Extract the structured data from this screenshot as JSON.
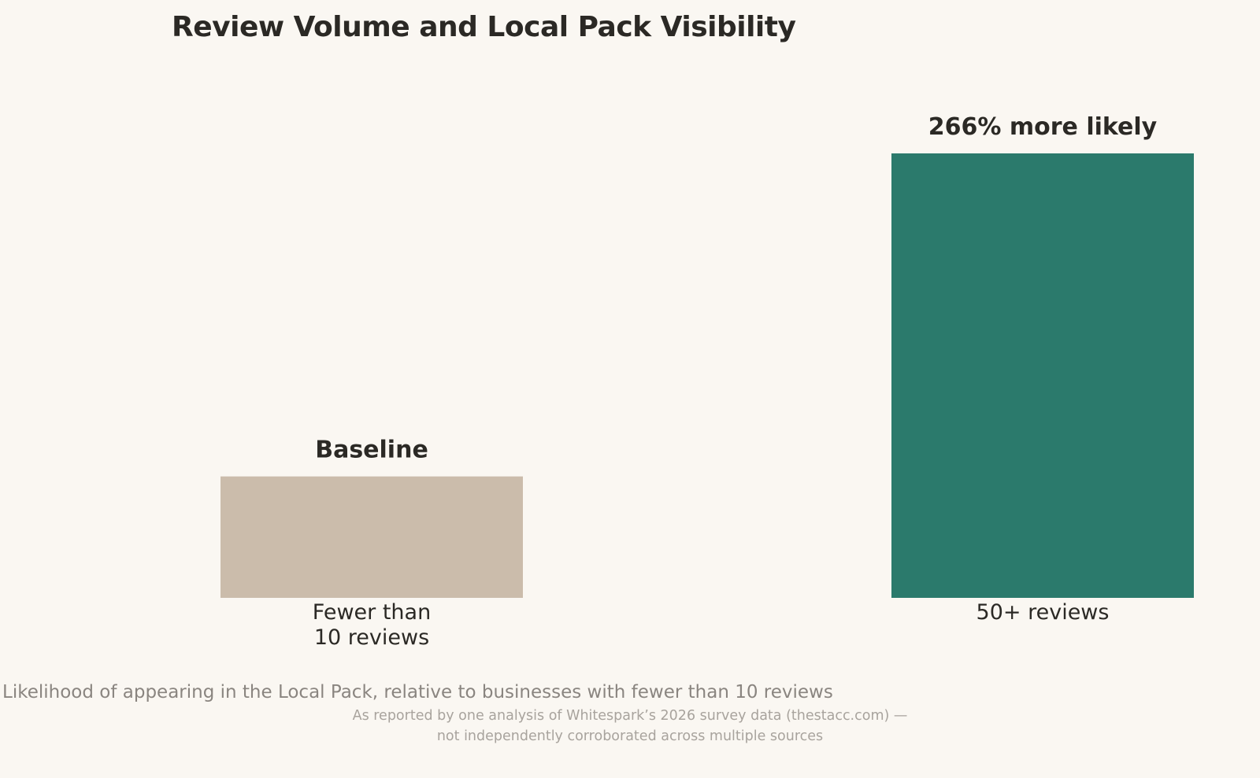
{
  "chart_data": {
    "type": "bar",
    "title": "Review Volume and Local Pack Visibility",
    "categories": [
      [
        "Fewer than",
        "10 reviews"
      ],
      [
        "50+ reviews"
      ]
    ],
    "values": [
      100,
      366
    ],
    "data_labels": [
      "Baseline",
      "266% more likely"
    ],
    "colors": [
      "#cbbcab",
      "#2b7a6c"
    ],
    "ylim": [
      0,
      366
    ],
    "grid": false,
    "legend": "none",
    "xlabel": "",
    "ylabel": ""
  },
  "caption": "Likelihood of appearing in the Local Pack, relative to businesses with fewer than 10 reviews",
  "source": {
    "line1": "As reported by one analysis of Whitespark’s 2026 survey data (thestacc.com) —",
    "line2": "not independently corroborated across multiple sources"
  }
}
